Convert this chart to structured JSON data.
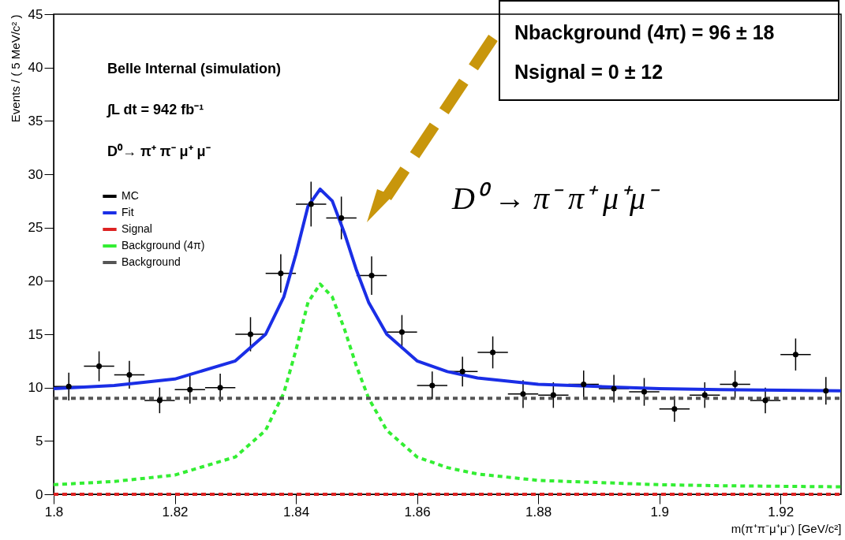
{
  "chart_data": {
    "type": "line",
    "xlabel": "m(π⁺π⁻μ⁺μ⁻) [GeV/c²]",
    "ylabel": "Events / ( 5 MeV/c² )",
    "xlim": [
      1.8,
      1.93
    ],
    "xticks": [
      1.8,
      1.82,
      1.84,
      1.86,
      1.88,
      1.9,
      1.92
    ],
    "ylim": [
      0,
      45
    ],
    "yticks": [
      0,
      5,
      10,
      15,
      20,
      25,
      30,
      35,
      40,
      45
    ],
    "legend": "top left",
    "grid": false,
    "annotations": [
      "Belle Internal (simulation)",
      "∫L dt = 942 fb⁻¹",
      "D⁰→ π⁺ π⁻ μ⁺ μ⁻",
      "Nbackground (4π) =  96 ± 18",
      "Nsignal =  0 ± 12",
      "D⁰ → π⁻ π⁺ μ⁺μ⁻"
    ],
    "series": [
      {
        "name": "MC",
        "type": "scatter",
        "color": "#000000",
        "marker": "circle",
        "x": [
          1.8025,
          1.8075,
          1.8125,
          1.8175,
          1.8225,
          1.8275,
          1.8325,
          1.8375,
          1.8425,
          1.8475,
          1.8525,
          1.8575,
          1.8625,
          1.8675,
          1.8725,
          1.8775,
          1.8825,
          1.8875,
          1.8925,
          1.8975,
          1.9025,
          1.9075,
          1.9125,
          1.9175,
          1.9225,
          1.9275
        ],
        "values": [
          10.1,
          12.0,
          11.2,
          8.8,
          9.8,
          10.0,
          15.0,
          20.7,
          27.2,
          25.9,
          20.5,
          15.2,
          10.2,
          11.5,
          13.3,
          9.4,
          9.3,
          10.3,
          9.9,
          9.6,
          8.0,
          9.3,
          10.3,
          8.8,
          13.1,
          9.7
        ],
        "errors": [
          1.3,
          1.4,
          1.3,
          1.2,
          1.3,
          1.3,
          1.6,
          1.8,
          2.1,
          2.0,
          1.8,
          1.6,
          1.3,
          1.4,
          1.5,
          1.3,
          1.2,
          1.3,
          1.3,
          1.3,
          1.2,
          1.2,
          1.3,
          1.2,
          1.5,
          1.3
        ],
        "xerrors": [
          0.0025,
          0.0025,
          0.0025,
          0.0025,
          0.0025,
          0.0025,
          0.0025,
          0.0025,
          0.0025,
          0.0025,
          0.0025,
          0.0025,
          0.0025,
          0.0025,
          0.0025,
          0.0025,
          0.0025,
          0.0025,
          0.0025,
          0.0025,
          0.0025,
          0.0025,
          0.0025,
          0.0025,
          0.0025,
          0.0025
        ]
      },
      {
        "name": "Fit",
        "type": "line",
        "color": "#1a2ee6",
        "line_style": "solid",
        "x": [
          1.8,
          1.81,
          1.82,
          1.83,
          1.835,
          1.838,
          1.84,
          1.842,
          1.844,
          1.846,
          1.848,
          1.85,
          1.852,
          1.855,
          1.86,
          1.865,
          1.87,
          1.88,
          1.89,
          1.9,
          1.91,
          1.93
        ],
        "values": [
          9.9,
          10.2,
          10.8,
          12.5,
          15.0,
          18.5,
          22.5,
          27.0,
          28.6,
          27.5,
          24.5,
          21.0,
          18.0,
          15.0,
          12.5,
          11.5,
          10.9,
          10.3,
          10.1,
          9.9,
          9.8,
          9.7
        ]
      },
      {
        "name": "Signal",
        "type": "line",
        "color": "#dd2222",
        "line_style": "dashed",
        "x": [
          1.8,
          1.93
        ],
        "values": [
          0,
          0
        ]
      },
      {
        "name": "Background (4π)",
        "type": "line",
        "color": "#33ee33",
        "line_style": "dashed",
        "x": [
          1.8,
          1.81,
          1.82,
          1.83,
          1.835,
          1.838,
          1.84,
          1.842,
          1.844,
          1.846,
          1.848,
          1.85,
          1.852,
          1.855,
          1.86,
          1.865,
          1.87,
          1.88,
          1.89,
          1.9,
          1.91,
          1.93
        ],
        "values": [
          0.9,
          1.2,
          1.8,
          3.5,
          6.0,
          9.5,
          13.5,
          18.0,
          19.7,
          18.5,
          15.5,
          12.0,
          9.0,
          6.0,
          3.5,
          2.5,
          1.9,
          1.3,
          1.1,
          0.9,
          0.8,
          0.7
        ]
      },
      {
        "name": "Background",
        "type": "line",
        "color": "#555555",
        "line_style": "dashed",
        "x": [
          1.8,
          1.93
        ],
        "values": [
          9,
          9
        ]
      }
    ]
  }
}
